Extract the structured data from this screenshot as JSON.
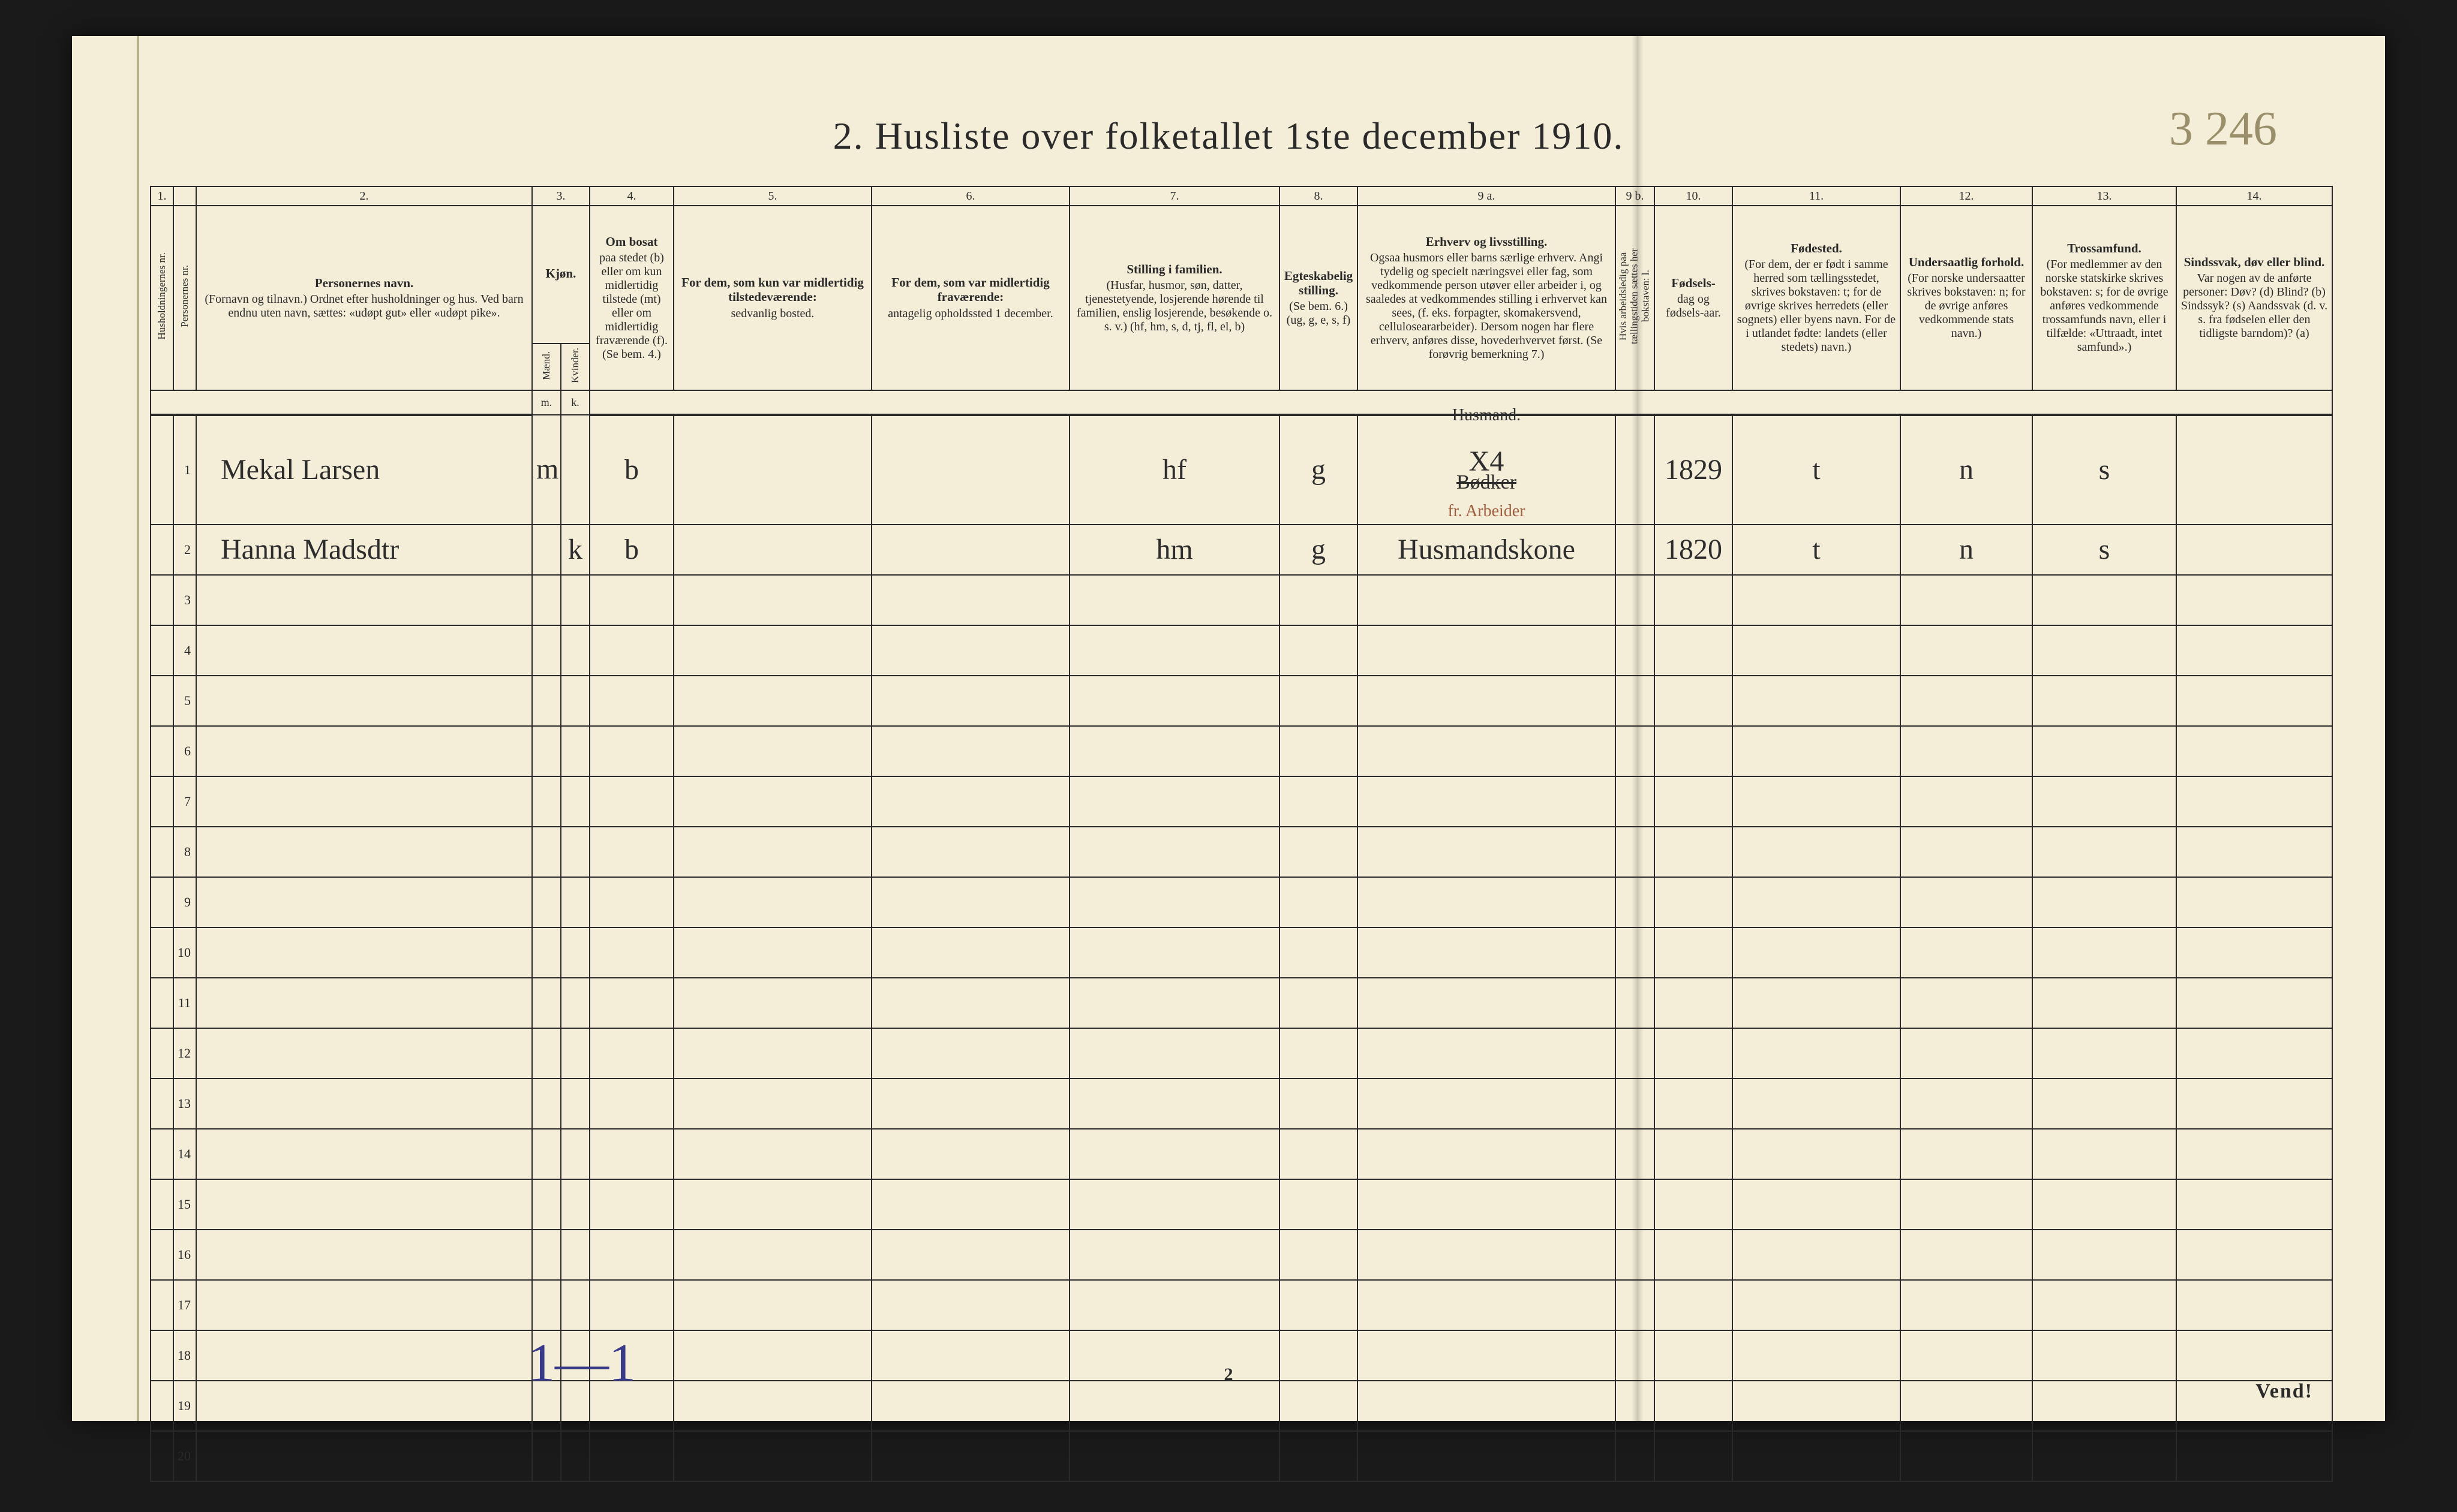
{
  "title": "2.  Husliste over folketallet 1ste december 1910.",
  "page_annotation": "3 246",
  "footer_pagenum": "2",
  "footer_right": "Vend!",
  "footer_annotation": "1—1",
  "colors": {
    "paper": "#f4eed8",
    "ink": "#2a2a2a",
    "pencil": "#9a8f6a",
    "blue_ink": "#3a3a8a",
    "margin_rule": "#b9b08c",
    "scan_bg": "#1a1a1a"
  },
  "columns": {
    "nums": [
      "1.",
      "",
      "2.",
      "3.",
      "",
      "4.",
      "5.",
      "6.",
      "7.",
      "8.",
      "9 a.",
      "9 b.",
      "10.",
      "11.",
      "12.",
      "13.",
      "14."
    ],
    "c1a": "Husholdningernes nr.",
    "c1b": "Personernes nr.",
    "c2_title": "Personernes navn.",
    "c2_body": "(Fornavn og tilnavn.)\nOrdnet efter husholdninger og hus.\nVed barn endnu uten navn, sættes: «udøpt gut»\neller «udøpt pike».",
    "c3_title": "Kjøn.",
    "c3_m": "Mænd.",
    "c3_k": "Kvinder.",
    "c3_sub_m": "m.",
    "c3_sub_k": "k.",
    "c4_title": "Om bosat",
    "c4_body": "paa stedet (b) eller om kun midlertidig tilstede (mt) eller om midlertidig fraværende (f).\n(Se bem. 4.)",
    "c5_title": "For dem, som kun var midlertidig tilstedeværende:",
    "c5_body": "sedvanlig bosted.",
    "c6_title": "For dem, som var midlertidig fraværende:",
    "c6_body": "antagelig opholdssted 1 december.",
    "c7_title": "Stilling i familien.",
    "c7_body": "(Husfar, husmor, søn, datter, tjenestetyende, losjerende hørende til familien, enslig losjerende, besøkende o. s. v.)\n(hf, hm, s, d, tj, fl, el, b)",
    "c8_title": "Egteskabelig stilling.",
    "c8_body": "(Se bem. 6.)\n(ug, g, e, s, f)",
    "c9a_title": "Erhverv og livsstilling.",
    "c9a_body": "Ogsaa husmors eller barns særlige erhverv. Angi tydelig og specielt næringsvei eller fag, som vedkommende person utøver eller arbeider i, og saaledes at vedkommendes stilling i erhvervet kan sees, (f. eks. forpagter, skomakersvend, celluloseararbeider). Dersom nogen har flere erhverv, anføres disse, hovederhvervet først.\n(Se forøvrig bemerkning 7.)",
    "c9b": "Hvis arbeidsledig paa tællingstiden sættes her bokstaven: l.",
    "c10_title": "Fødsels-",
    "c10_body": "dag og fødsels-aar.",
    "c11_title": "Fødested.",
    "c11_body": "(For dem, der er født i samme herred som tællingsstedet, skrives bokstaven: t; for de øvrige skrives herredets (eller sognets) eller byens navn. For de i utlandet fødte: landets (eller stedets) navn.)",
    "c12_title": "Undersaatlig forhold.",
    "c12_body": "(For norske undersaatter skrives bokstaven: n; for de øvrige anføres vedkommende stats navn.)",
    "c13_title": "Trossamfund.",
    "c13_body": "(For medlemmer av den norske statskirke skrives bokstaven: s; for de øvrige anføres vedkommende trossamfunds navn, eller i tilfælde: «Uttraadt, intet samfund».)",
    "c14_title": "Sindssvak, døv eller blind.",
    "c14_body": "Var nogen av de anførte personer:\nDøv?        (d)\nBlind?      (b)\nSindssyk?   (s)\nAandssvak (d. v. s. fra fødselen eller den tidligste barndom)? (a)"
  },
  "rows": [
    {
      "num": "1",
      "name": "Mekal Larsen",
      "sex_m": "m",
      "sex_k": "",
      "bosat": "b",
      "c5": "",
      "c6": "",
      "c7": "hf",
      "c8": "g",
      "c9a_above": "Husmand.",
      "c9a_main": "X4",
      "c9a_struck": "Bødker",
      "c9a_note": "fr. Arbeider",
      "c9b": "",
      "c10": "1829",
      "c11": "t",
      "c12": "n",
      "c13": "s",
      "c14": ""
    },
    {
      "num": "2",
      "name": "Hanna Madsdtr",
      "sex_m": "",
      "sex_k": "k",
      "bosat": "b",
      "c5": "",
      "c6": "",
      "c7": "hm",
      "c8": "g",
      "c9a_above": "",
      "c9a_main": "Husmandskone",
      "c9a_struck": "",
      "c9a_note": "",
      "c9b": "",
      "c10": "1820",
      "c11": "t",
      "c12": "n",
      "c13": "s",
      "c14": ""
    }
  ],
  "blank_rows": [
    "3",
    "4",
    "5",
    "6",
    "7",
    "8",
    "9",
    "10",
    "11",
    "12",
    "13",
    "14",
    "15",
    "16",
    "17",
    "18",
    "19",
    "20"
  ]
}
